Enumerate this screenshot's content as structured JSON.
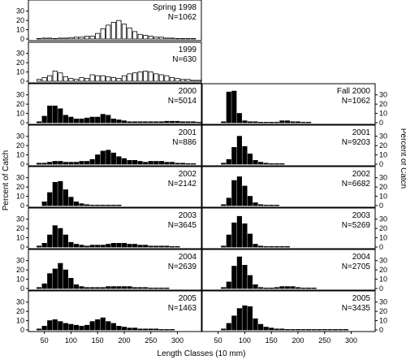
{
  "chart_data": {
    "type": "bar",
    "x_label": "Length Classes (10 mm)",
    "y_label_left": "Percent of Catch",
    "y_label_right": "Percent of Catch",
    "x_ticks": [
      50,
      100,
      150,
      200,
      250,
      300
    ],
    "x_range": [
      20,
      345
    ],
    "y_range": [
      0,
      35
    ],
    "y_ticks": [
      0,
      10,
      20,
      30
    ],
    "left_panels": [
      {
        "label": "Spring 1998",
        "n": "N=1062",
        "fill": "#ffffff",
        "x_start": 40,
        "values": [
          0.5,
          1,
          1,
          0.5,
          1,
          1,
          1.5,
          2,
          2,
          3,
          3,
          6,
          11,
          15,
          18,
          20,
          16,
          12,
          8,
          5,
          4,
          3,
          2,
          2,
          1,
          1,
          0.5,
          0.5,
          0.5,
          0.5
        ]
      },
      {
        "label": "1999",
        "n": "N=630",
        "fill": "#ffffff",
        "x_start": 40,
        "values": [
          2,
          4,
          6,
          11,
          9,
          5,
          3,
          2,
          4,
          3,
          7,
          6,
          6,
          5,
          4,
          3,
          6,
          8,
          9,
          10,
          11,
          10,
          8,
          7,
          6,
          4,
          3,
          2,
          2,
          1,
          1
        ]
      },
      {
        "label": "2000",
        "n": "N=5014",
        "fill": "#000000",
        "x_start": 40,
        "values": [
          1,
          7,
          18,
          18,
          15,
          8,
          6,
          4,
          4,
          5,
          6,
          6,
          9,
          8,
          4,
          3,
          2,
          1,
          1,
          1,
          1,
          1,
          1,
          1,
          1.5,
          1.5,
          1.5,
          1,
          1,
          1,
          0.5
        ]
      },
      {
        "label": "2001",
        "n": "N=886",
        "fill": "#000000",
        "x_start": 40,
        "values": [
          1,
          1,
          2,
          3,
          3,
          2,
          2,
          2,
          3,
          3,
          5,
          10,
          14,
          15,
          12,
          8,
          6,
          4,
          4,
          3,
          2,
          3,
          3,
          3,
          2,
          2,
          1,
          1,
          0.5,
          0.5
        ]
      },
      {
        "label": "2002",
        "n": "N=2142",
        "fill": "#000000",
        "x_start": 40,
        "values": [
          0,
          4,
          14,
          25,
          26,
          17,
          9,
          4,
          2,
          1,
          0.5,
          0.5,
          0.5,
          0.5,
          0.5,
          0.5,
          0,
          0,
          0,
          0,
          0,
          0,
          0,
          0,
          0,
          0
        ]
      },
      {
        "label": "2003",
        "n": "N=3645",
        "fill": "#000000",
        "x_start": 40,
        "values": [
          1,
          4,
          13,
          23,
          20,
          13,
          5,
          3,
          2,
          1,
          2,
          2,
          2,
          3,
          4,
          4,
          4,
          3,
          3,
          2,
          2,
          1,
          1,
          1,
          1,
          0.5,
          0.5
        ]
      },
      {
        "label": "2004",
        "n": "N=2639",
        "fill": "#000000",
        "x_start": 40,
        "values": [
          1,
          5,
          16,
          21,
          27,
          20,
          11,
          4,
          2,
          1,
          1,
          1,
          1,
          2,
          2,
          2,
          2,
          2,
          1,
          1,
          1,
          0.5,
          0.5,
          0.5,
          0.5
        ]
      },
      {
        "label": "2005",
        "n": "N=1463",
        "fill": "#000000",
        "x_start": 40,
        "values": [
          1,
          4,
          10,
          11,
          9,
          7,
          6,
          5,
          4,
          5,
          9,
          11,
          13,
          9,
          7,
          4,
          3,
          2,
          2,
          1,
          1,
          1,
          1,
          0.5,
          0.5,
          0.5
        ]
      }
    ],
    "right_panels": [
      {
        "label": "Fall 2000",
        "n": "N=1062",
        "x_start": 40,
        "values": [
          0,
          0,
          1,
          33,
          34,
          10,
          2,
          1,
          1,
          0.5,
          0.5,
          0.5,
          0.5,
          2,
          2,
          1,
          1,
          0.5,
          0.5
        ]
      },
      {
        "label": "2001",
        "n": "N=9203",
        "x_start": 40,
        "values": [
          0,
          0,
          1,
          5,
          18,
          30,
          19,
          11,
          4,
          2,
          1,
          0.5,
          0.5,
          0.5
        ]
      },
      {
        "label": "2002",
        "n": "N=6682",
        "x_start": 40,
        "values": [
          0,
          0,
          1,
          8,
          27,
          31,
          21,
          10,
          3,
          1,
          0.5,
          0.5,
          0.5
        ]
      },
      {
        "label": "2003",
        "n": "N=5269",
        "x_start": 40,
        "values": [
          0,
          0,
          1,
          13,
          26,
          33,
          25,
          14,
          3,
          1,
          0.5,
          0.5,
          0.5,
          0.5,
          0.5
        ]
      },
      {
        "label": "2004",
        "n": "N=2705",
        "x_start": 40,
        "values": [
          0,
          0,
          1,
          7,
          24,
          34,
          25,
          14,
          4,
          1,
          0.5,
          0.5,
          1,
          2,
          2,
          2,
          1,
          0.5,
          0.5,
          0.5
        ]
      },
      {
        "label": "2005",
        "n": "N=3435",
        "x_start": 40,
        "values": [
          0,
          0,
          1,
          7,
          15,
          23,
          26,
          25,
          12,
          6,
          3,
          2,
          1,
          1,
          0.5,
          0.5,
          0.5,
          0.5,
          0.5,
          0.5,
          0.5,
          0.5,
          0.5,
          0.5,
          0.5,
          0.5
        ]
      }
    ]
  }
}
